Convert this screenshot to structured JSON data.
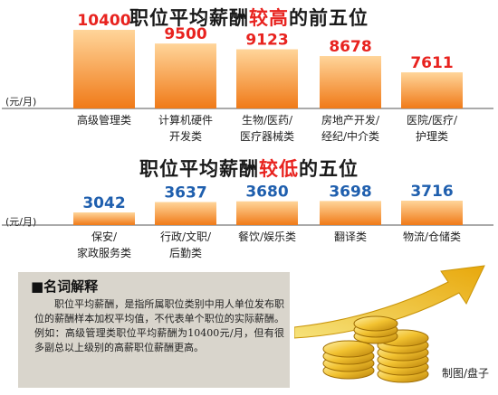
{
  "top_section": {
    "title_pre": "职位平均薪酬",
    "title_hl": "较高",
    "title_post": "的前五位",
    "unit": "(元/月)"
  },
  "bottom_section": {
    "title_pre": "职位平均薪酬",
    "title_hl": "较低",
    "title_post": "的五位",
    "unit": "(元/月)"
  },
  "colors": {
    "top_label": "#e8231f",
    "bottom_label": "#1f5fae",
    "bar_light": "#ffd59a",
    "bar_dark": "#f07a18",
    "highlight": "#e8231f"
  },
  "chart_data": [
    {
      "type": "bar",
      "title": "职位平均薪酬较高的前五位",
      "ylabel": "(元/月)",
      "categories": [
        [
          "高级管理类"
        ],
        [
          "计算机硬件",
          "开发类"
        ],
        [
          "生物/医药/",
          "医疗器械类"
        ],
        [
          "房地产开发/",
          "经纪/中介类"
        ],
        [
          "医院/医疗/",
          "护理类"
        ]
      ],
      "values": [
        10400,
        9500,
        9123,
        8678,
        7611
      ],
      "data_labels": [
        "10400",
        "9500",
        "9123",
        "8678",
        "7611"
      ]
    },
    {
      "type": "bar",
      "title": "职位平均薪酬较低的五位",
      "ylabel": "(元/月)",
      "categories": [
        [
          "保安/",
          "家政服务类"
        ],
        [
          "行政/文职/",
          "后勤类"
        ],
        [
          "餐饮/娱乐类"
        ],
        [
          "翻译类"
        ],
        [
          "物流/仓储类"
        ]
      ],
      "values": [
        3042,
        3637,
        3680,
        3698,
        3716
      ],
      "data_labels": [
        "3042",
        "3637",
        "3680",
        "3698",
        "3716"
      ]
    }
  ],
  "glossary": {
    "heading": "■名词解释",
    "body": "职位平均薪酬，是指所属职位类别中用人单位发布职位的薪酬样本加权平均值，不代表单个职位的实际薪酬。例如：高级管理类职位平均薪酬为10400元/月，但有很多副总以上级别的高薪职位薪酬更高。"
  },
  "credit": "制图/盘子"
}
